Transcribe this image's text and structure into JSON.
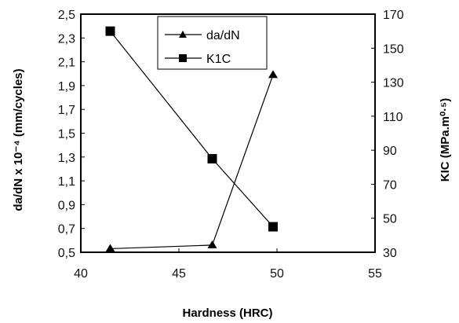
{
  "chart_data": {
    "type": "line",
    "xlabel": "Hardness (HRC)",
    "ylabel_left": "da/dN x 10⁻⁴ (mm/cycles)",
    "ylabel_right": "KIC (MPa.m⁰·⁵)",
    "xlim": [
      40,
      55
    ],
    "ylim_left": [
      0.5,
      2.5
    ],
    "ylim_right": [
      30,
      170
    ],
    "x_ticks": [
      "40",
      "45",
      "50",
      "55"
    ],
    "y_left_ticks": [
      "0,5",
      "0,7",
      "0,9",
      "1,1",
      "1,3",
      "1,5",
      "1,7",
      "1,9",
      "2,1",
      "2,3",
      "2,5"
    ],
    "y_right_ticks": [
      "30",
      "50",
      "70",
      "90",
      "110",
      "130",
      "150",
      "170"
    ],
    "grid": false,
    "legend_position": "top-inside",
    "series": [
      {
        "name": "da/dN",
        "axis": "left",
        "marker": "triangle",
        "x": [
          41.5,
          46.7,
          49.8
        ],
        "values": [
          0.53,
          0.56,
          1.99
        ]
      },
      {
        "name": "K1C",
        "axis": "right",
        "marker": "square",
        "x": [
          41.5,
          46.7,
          49.8
        ],
        "values": [
          160,
          85,
          45
        ]
      }
    ]
  }
}
